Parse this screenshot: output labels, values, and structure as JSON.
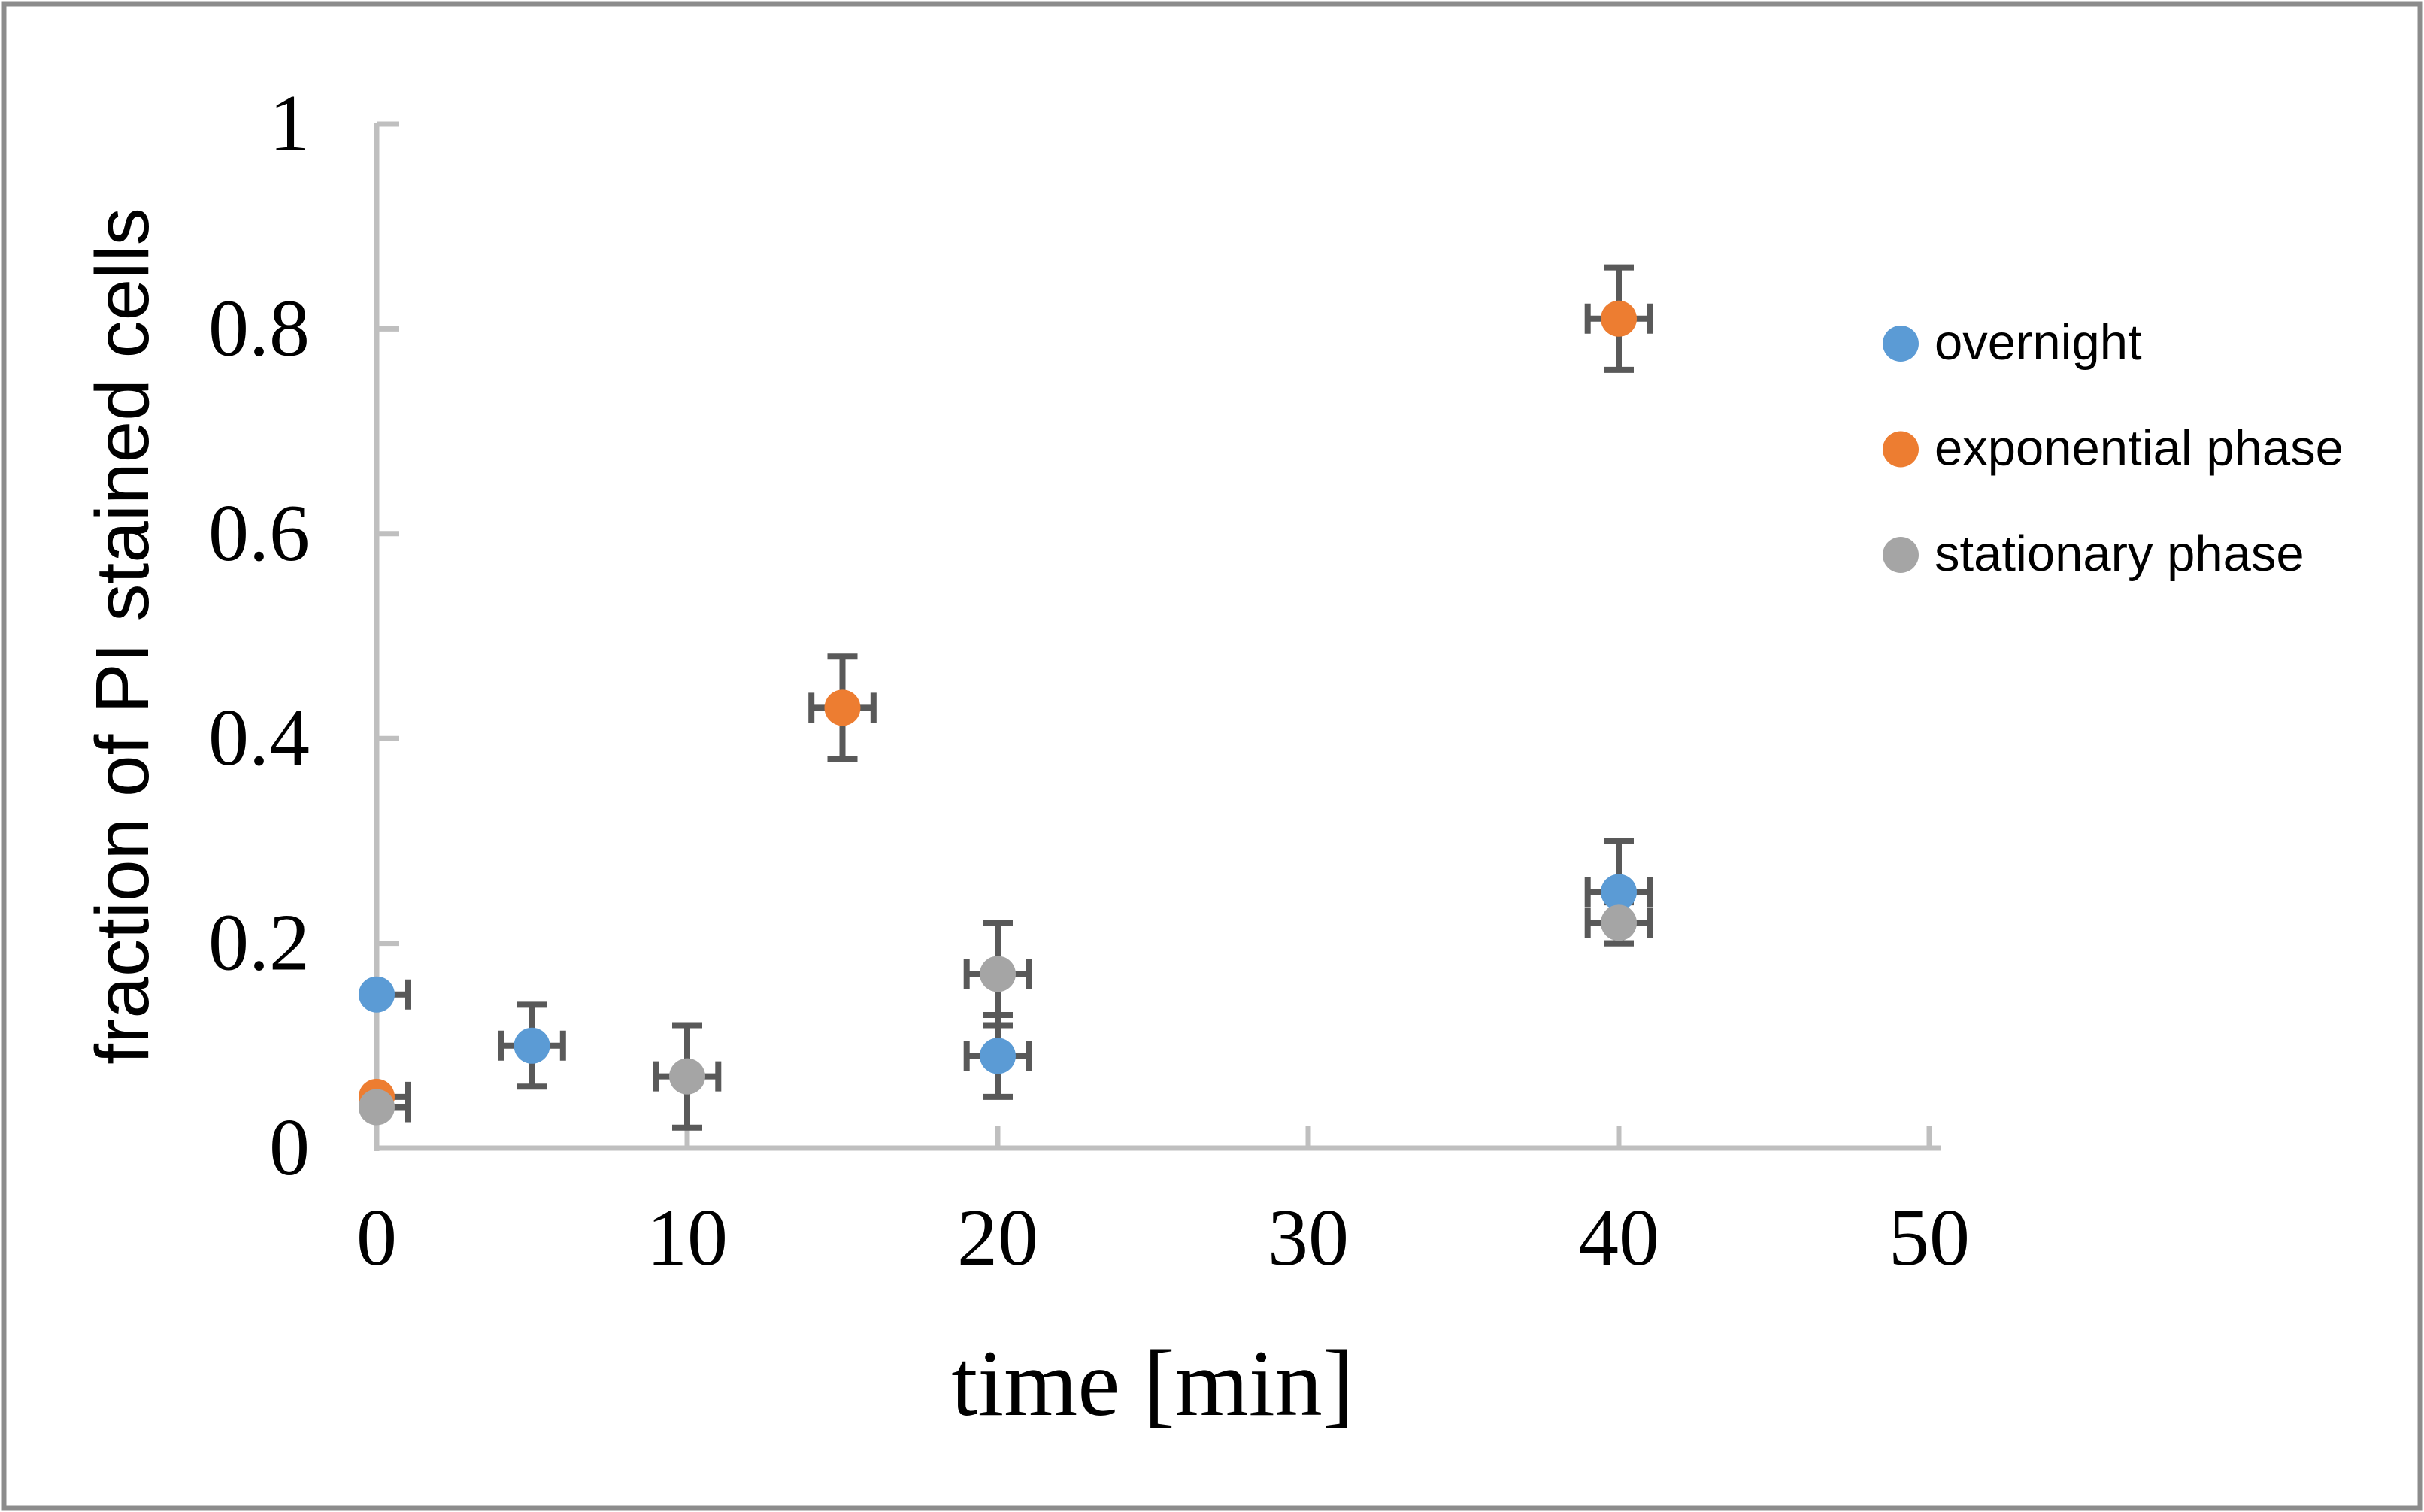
{
  "chart_data": {
    "type": "scatter",
    "title": "",
    "xlabel": "time [min]",
    "ylabel": "fraction of PI stained cells",
    "xlim": [
      0,
      50
    ],
    "ylim": [
      0,
      1
    ],
    "xticks": [
      0,
      10,
      20,
      30,
      40,
      50
    ],
    "xtick_labels": [
      "0",
      "10",
      "20",
      "30",
      "40",
      "50"
    ],
    "yticks": [
      0,
      0.2,
      0.4,
      0.6,
      0.8,
      1
    ],
    "ytick_labels": [
      "0",
      "0.2",
      "0.4",
      "0.6",
      "0.8",
      "1"
    ],
    "grid": false,
    "legend_position": "right",
    "colors": {
      "axis": "#BFBFBF",
      "error_bar": "#595959",
      "text": "#000000",
      "frame_border": "#8C8C8C"
    },
    "series": [
      {
        "name": "overnight",
        "color": "#5B9BD5",
        "points": [
          {
            "x": 0,
            "y": 0.15,
            "yerr": null,
            "xerr": 1
          },
          {
            "x": 5,
            "y": 0.1,
            "yerr": 0.04,
            "xerr": 1
          },
          {
            "x": 20,
            "y": 0.09,
            "yerr": 0.04,
            "xerr": 1
          },
          {
            "x": 40,
            "y": 0.25,
            "yerr": 0.05,
            "xerr": 1
          }
        ]
      },
      {
        "name": "exponential phase",
        "color": "#ED7D31",
        "points": [
          {
            "x": 0,
            "y": 0.05,
            "yerr": null,
            "xerr": 1
          },
          {
            "x": 15,
            "y": 0.43,
            "yerr": 0.05,
            "xerr": 1
          },
          {
            "x": 40,
            "y": 0.81,
            "yerr": 0.05,
            "xerr": 1
          }
        ]
      },
      {
        "name": "stationary phase",
        "color": "#A5A5A5",
        "points": [
          {
            "x": 0,
            "y": 0.04,
            "yerr": null,
            "xerr": 1
          },
          {
            "x": 10,
            "y": 0.07,
            "yerr": 0.05,
            "xerr": 1
          },
          {
            "x": 20,
            "y": 0.17,
            "yerr": 0.05,
            "xerr": 1
          },
          {
            "x": 40,
            "y": 0.22,
            "yerr": 0.02,
            "xerr": 1
          }
        ]
      }
    ]
  }
}
